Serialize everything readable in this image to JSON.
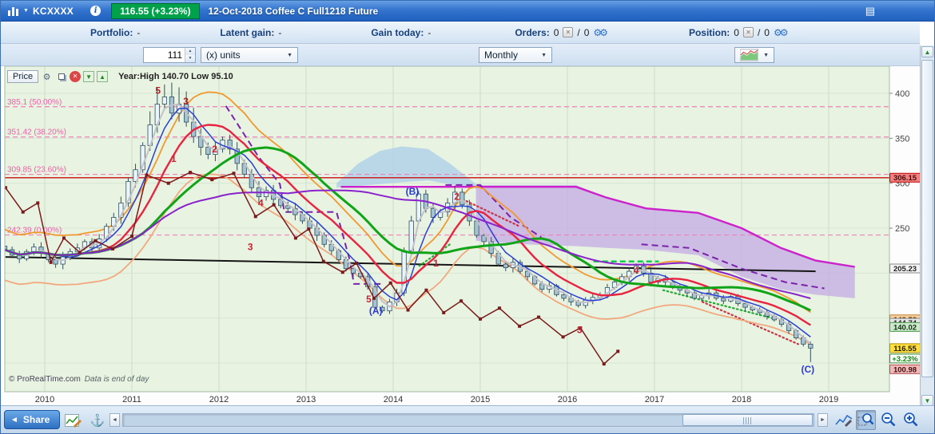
{
  "title_bar": {
    "symbol": "KCXXXX",
    "price_badge": "116.55 (+3.23%)",
    "title": "12-Oct-2018 Coffee C Full1218 Future"
  },
  "account_bar": {
    "portfolio_label": "Portfolio:",
    "portfolio_value": "-",
    "latent_label": "Latent gain:",
    "latent_value": "-",
    "gain_label": "Gain today:",
    "gain_value": "-",
    "orders_label": "Orders:",
    "orders_value": "0",
    "orders_slash": "/",
    "orders_value2": "0",
    "position_label": "Position:",
    "position_value": "0",
    "position_slash": "/",
    "position_value2": "0"
  },
  "toolbar": {
    "quantity": "111",
    "units_option": "(x) units",
    "timeframe": "Monthly"
  },
  "chart_header": {
    "price_label": "Price",
    "year_stats": "Year:High 140.70 Low 95.10"
  },
  "footer": {
    "share_label": "Share",
    "copyright_brand": "© ProRealTime.com",
    "copyright_note": "Data is end of day"
  },
  "chart_data": {
    "type": "candlestick",
    "title": "12-Oct-2018 Coffee C Full1218 Future",
    "timeframe": "Monthly",
    "start_year_month": "2009-07",
    "x_years": [
      2010,
      2011,
      2012,
      2013,
      2014,
      2015,
      2016,
      2017,
      2018,
      2019
    ],
    "y_ticks": [
      400,
      350,
      300,
      250,
      200,
      150,
      100
    ],
    "y_tick_labels": [
      400,
      350,
      300,
      250
    ],
    "ylim": [
      70,
      425
    ],
    "year_high": "140.70",
    "year_low": "95.10",
    "last": {
      "price": 116.55,
      "change_pct": "+3.23%",
      "low_wick": 101
    },
    "closes": [
      226,
      220,
      216,
      224,
      229,
      222,
      215,
      210,
      218,
      224,
      228,
      235,
      228,
      238,
      252,
      262,
      278,
      302,
      315,
      342,
      365,
      388,
      396,
      378,
      388,
      368,
      352,
      340,
      332,
      338,
      348,
      338,
      322,
      310,
      295,
      285,
      292,
      282,
      275,
      272,
      265,
      258,
      250,
      242,
      232,
      225,
      215,
      205,
      200,
      196,
      185,
      162,
      158,
      168,
      178,
      225,
      258,
      288,
      272,
      262,
      268,
      278,
      290,
      276,
      258,
      242,
      235,
      222,
      210,
      206,
      212,
      202,
      196,
      188,
      182,
      186,
      176,
      172,
      168,
      164,
      170,
      173,
      176,
      184,
      190,
      196,
      202,
      208,
      200,
      190,
      194,
      190,
      184,
      181,
      178,
      172,
      175,
      178,
      172,
      169,
      174,
      166,
      162,
      159,
      156,
      152,
      148,
      143,
      136,
      128,
      121,
      116.55
    ],
    "fib_levels": [
      {
        "label": "385.1 (50.00%)",
        "price": 385.1
      },
      {
        "label": "351.42 (38.20%)",
        "price": 351.42
      },
      {
        "label": "309.85 (23.60%)",
        "price": 309.85
      },
      {
        "label": "242.39 (0.00%)",
        "price": 242.39
      }
    ],
    "hline": {
      "price": 306.15,
      "label": "306.15",
      "color": "#cc2222"
    },
    "right_labels": [
      {
        "text": "306.15",
        "price": 306.15,
        "bg": "#f58080",
        "border": "#c00000",
        "fg": "#401010"
      },
      {
        "text": "205.23",
        "price": 205.23,
        "bg": "#f4f4f4",
        "border": "#888888",
        "fg": "#222222"
      },
      {
        "text": "148.58",
        "price": 148.58,
        "bg": "#f7cf9e",
        "border": "#c08030",
        "fg": "#442200"
      },
      {
        "text": "144.74",
        "price": 144.74,
        "bg": "#e6e6e6",
        "border": "#909090",
        "fg": "#222222"
      },
      {
        "text": "140.02",
        "price": 140.02,
        "bg": "#cde8cd",
        "border": "#4a9a4a",
        "fg": "#103510"
      },
      {
        "text": "116.55",
        "price": 116.55,
        "bg": "#ffdf3e",
        "border": "#b09000",
        "fg": "#221a00"
      },
      {
        "text": "+3.23%",
        "price": 105,
        "bg": "#ffffff",
        "border": "#2a8a2a",
        "fg": "#0a8a0a"
      },
      {
        "text": "100.98",
        "price": 93,
        "bg": "#f3b8b8",
        "border": "#b05050",
        "fg": "#401010"
      }
    ],
    "indicators": {
      "mas": [
        {
          "name": "ma-grey",
          "window": 3,
          "color": "#c2c2ca",
          "width": 2
        },
        {
          "name": "ma-blue",
          "window": 5,
          "color": "#2a3fd4",
          "width": 1.5
        },
        {
          "name": "ma-red",
          "window": 10,
          "color": "#e82440",
          "width": 2.4
        },
        {
          "name": "ma-green",
          "window": 20,
          "color": "#10a518",
          "width": 3
        },
        {
          "name": "ma-purple",
          "window": 40,
          "color": "#8a22cc",
          "width": 2
        }
      ],
      "bands": [
        {
          "name": "upper-band",
          "base_window": 10,
          "mult": 1.1,
          "color": "#f2992e",
          "width": 1.8
        },
        {
          "name": "lower-band",
          "base_window": 10,
          "mult": 0.85,
          "color": "#f2a87e",
          "width": 1.8
        }
      ]
    },
    "lines": {
      "straight": [
        {
          "name": "long-trendline",
          "color": "#151515",
          "width": 2,
          "points": [
            [
              2009.55,
              218
            ],
            [
              2018.85,
              202
            ]
          ]
        },
        {
          "name": "senkou-line",
          "color": "#cc22cc",
          "width": 2.4,
          "points": [
            [
              2013.4,
              296
            ],
            [
              2016.1,
              296
            ],
            [
              2016.45,
              284
            ],
            [
              2016.9,
              272
            ],
            [
              2017.5,
              267
            ],
            [
              2018.0,
              250
            ],
            [
              2018.45,
              228
            ],
            [
              2018.85,
              214
            ],
            [
              2019.3,
              207
            ]
          ]
        }
      ],
      "dashed": [
        {
          "color": "#7a22aa",
          "width": 2,
          "dash": "8,5",
          "points": [
            [
              2012.08,
              386
            ],
            [
              2012.45,
              330
            ],
            [
              2012.7,
              299
            ],
            [
              2012.75,
              268
            ],
            [
              2013.35,
              268
            ],
            [
              2013.5,
              215
            ],
            [
              2013.55,
              188
            ],
            [
              2013.9,
              188
            ]
          ]
        },
        {
          "color": "#7a22aa",
          "width": 2,
          "dash": "8,5",
          "points": [
            [
              2014.6,
              298
            ],
            [
              2015.0,
              298
            ],
            [
              2015.35,
              262
            ],
            [
              2015.7,
              240
            ]
          ]
        },
        {
          "color": "#7a22aa",
          "width": 2,
          "dash": "8,5",
          "points": [
            [
              2016.85,
              232
            ],
            [
              2017.4,
              228
            ],
            [
              2018.0,
              205
            ],
            [
              2018.5,
              190
            ],
            [
              2018.95,
              183
            ]
          ]
        },
        {
          "color": "#00cc44",
          "width": 2.4,
          "dash": "7,4",
          "points": [
            [
              2016.3,
              213
            ],
            [
              2017.05,
              213
            ]
          ]
        }
      ],
      "dotted": [
        {
          "color": "#22aa33",
          "points": [
            [
              2014.3,
              208
            ],
            [
              2014.65,
              232
            ]
          ]
        },
        {
          "color": "#cc3344",
          "points": [
            [
              2014.8,
              282
            ],
            [
              2015.45,
              252
            ]
          ]
        },
        {
          "color": "#22aa33",
          "points": [
            [
              2017.1,
              181
            ],
            [
              2018.35,
              150
            ]
          ]
        },
        {
          "color": "#cc3344",
          "points": [
            [
              2017.55,
              168
            ],
            [
              2018.65,
              121
            ]
          ]
        }
      ]
    },
    "clouds": [
      {
        "name": "cloud-blue",
        "color": "#aecfe8",
        "opacity": 0.8,
        "top": [
          [
            2013.35,
            300
          ],
          [
            2013.6,
            322
          ],
          [
            2013.85,
            336
          ],
          [
            2014.1,
            341
          ],
          [
            2014.4,
            338
          ],
          [
            2014.65,
            322
          ],
          [
            2014.95,
            299
          ]
        ],
        "bottom": [
          [
            2014.95,
            295
          ],
          [
            2014.65,
            299
          ],
          [
            2014.4,
            303
          ],
          [
            2014.1,
            301
          ],
          [
            2013.85,
            299
          ],
          [
            2013.6,
            297
          ],
          [
            2013.35,
            295
          ]
        ]
      },
      {
        "name": "cloud-purple",
        "color": "#c6aee4",
        "opacity": 0.8,
        "top": [
          [
            2014.95,
            298
          ],
          [
            2016.1,
            298
          ],
          [
            2016.45,
            284
          ],
          [
            2016.9,
            272
          ],
          [
            2017.5,
            267
          ],
          [
            2018.0,
            250
          ],
          [
            2018.45,
            228
          ],
          [
            2018.85,
            215
          ],
          [
            2019.3,
            208
          ]
        ],
        "bottom": [
          [
            2019.3,
            172
          ],
          [
            2018.85,
            176
          ],
          [
            2018.45,
            182
          ],
          [
            2018.0,
            196
          ],
          [
            2017.5,
            220
          ],
          [
            2016.9,
            226
          ],
          [
            2016.45,
            228
          ],
          [
            2016.1,
            230
          ],
          [
            2015.5,
            232
          ],
          [
            2014.95,
            236
          ]
        ]
      }
    ],
    "zigzag": {
      "color": "#7a1a1a",
      "points": [
        [
          2009.55,
          295
        ],
        [
          2009.75,
          268
        ],
        [
          2009.92,
          278
        ],
        [
          2010.07,
          212
        ],
        [
          2010.22,
          239
        ],
        [
          2010.4,
          223
        ],
        [
          2010.58,
          236
        ],
        [
          2010.78,
          227
        ],
        [
          2011.0,
          241
        ],
        [
          2011.17,
          309
        ],
        [
          2011.42,
          300
        ],
        [
          2011.67,
          312
        ],
        [
          2011.92,
          304
        ],
        [
          2012.17,
          311
        ],
        [
          2012.42,
          263
        ],
        [
          2012.63,
          276
        ],
        [
          2012.88,
          239
        ],
        [
          2013.03,
          249
        ],
        [
          2013.2,
          213
        ],
        [
          2013.42,
          201
        ],
        [
          2013.58,
          211
        ],
        [
          2013.78,
          172
        ],
        [
          2013.97,
          189
        ],
        [
          2014.17,
          159
        ],
        [
          2014.38,
          181
        ],
        [
          2014.58,
          156
        ],
        [
          2014.78,
          169
        ],
        [
          2015.0,
          149
        ],
        [
          2015.22,
          161
        ],
        [
          2015.45,
          141
        ],
        [
          2015.67,
          151
        ],
        [
          2015.95,
          129
        ],
        [
          2016.15,
          139
        ],
        [
          2016.42,
          99
        ],
        [
          2016.58,
          113
        ]
      ]
    },
    "wave_labels": [
      {
        "text": "5",
        "year": 2011.3,
        "price": 403,
        "color": "#b22222"
      },
      {
        "text": "3",
        "year": 2011.62,
        "price": 391,
        "color": "#b22222"
      },
      {
        "text": "1",
        "year": 2011.48,
        "price": 327,
        "color": "#cc2233"
      },
      {
        "text": "2",
        "year": 2011.95,
        "price": 338,
        "color": "#cc2233"
      },
      {
        "text": "4",
        "year": 2012.48,
        "price": 278,
        "color": "#cc2233"
      },
      {
        "text": "3",
        "year": 2012.36,
        "price": 229,
        "color": "#cc2233"
      },
      {
        "text": "5",
        "year": 2013.72,
        "price": 171,
        "color": "#cc2233"
      },
      {
        "text": "(A)",
        "year": 2013.8,
        "price": 158,
        "color": "#2a3bd6"
      },
      {
        "text": "(B)",
        "year": 2014.22,
        "price": 291,
        "color": "#2a3bd6"
      },
      {
        "text": "1",
        "year": 2014.49,
        "price": 211,
        "color": "#cc2233"
      },
      {
        "text": "2",
        "year": 2014.73,
        "price": 285,
        "color": "#cc2233"
      },
      {
        "text": "3",
        "year": 2016.14,
        "price": 137,
        "color": "#cc2233"
      },
      {
        "text": "4",
        "year": 2016.79,
        "price": 203,
        "color": "#cc2233"
      },
      {
        "text": "(C)",
        "year": 2018.76,
        "price": 93,
        "color": "#2a3bd6"
      }
    ]
  }
}
